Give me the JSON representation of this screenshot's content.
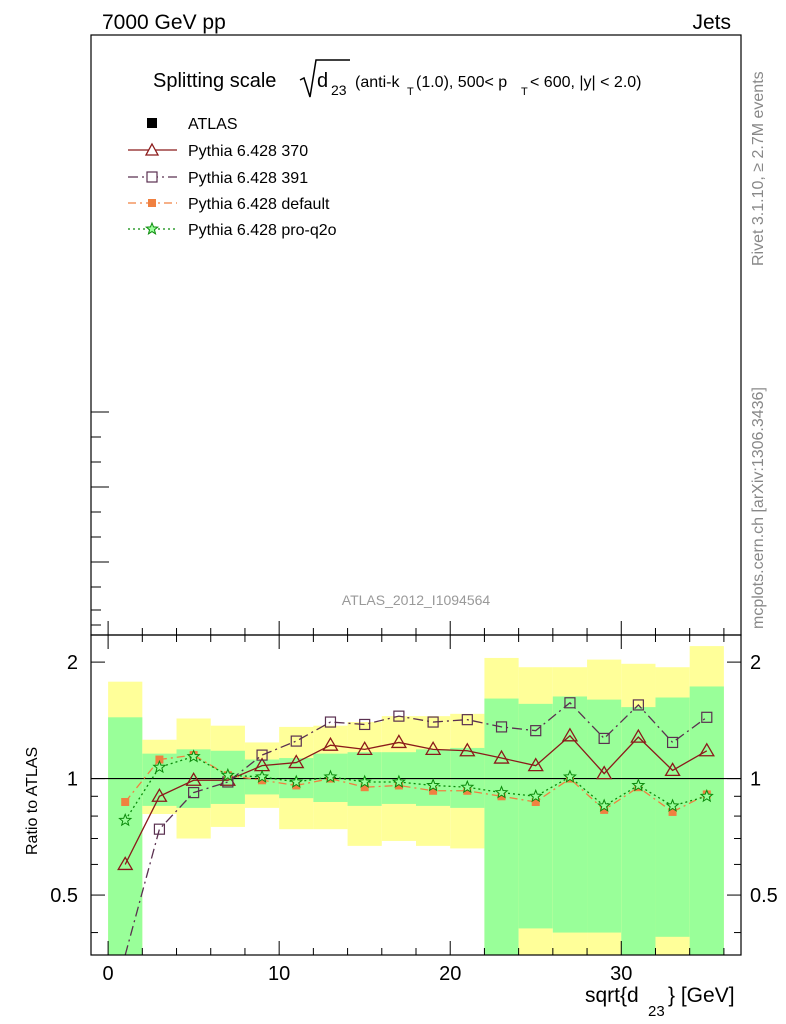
{
  "header": {
    "left": "7000 GeV pp",
    "right": "Jets"
  },
  "title": {
    "main": "Splitting scale",
    "sqrt_arg": "d",
    "sqrt_sub": "23",
    "detail_1": "(anti-k",
    "detail_1_sub": "T",
    "detail_2": "(1.0), 500< p",
    "detail_2_sub": "T",
    "detail_3": "< 600, |y| < 2.0)"
  },
  "side_labels": {
    "rivet": "Rivet 3.1.10, ≥ 2.7M events",
    "mcplots": "mcplots.cern.ch [arXiv:1306.3436]"
  },
  "analysis_id": "ATLAS_2012_I1094564",
  "legend": [
    {
      "key": "atlas",
      "label": "ATLAS"
    },
    {
      "key": "p370",
      "label": "Pythia 6.428 370"
    },
    {
      "key": "p391",
      "label": "Pythia 6.428 391"
    },
    {
      "key": "pdef",
      "label": "Pythia 6.428 default"
    },
    {
      "key": "pq2o",
      "label": "Pythia 6.428 pro-q2o"
    }
  ],
  "colors": {
    "p370": "#8b1a1a",
    "p391": "#5a3050",
    "pdef": "#f08040",
    "pq2o": "#0a8a0a",
    "band_inner": "#99ff99",
    "band_outer": "#ffff99"
  },
  "ratio_ylabel": "Ratio to ATLAS",
  "xlabel": {
    "main": "sqrt{d",
    "sub": "23",
    "tail": "} [GeV]"
  },
  "chart_data": {
    "type": "line",
    "x_range": [
      -1,
      37
    ],
    "y_range": [
      0.35,
      2.35
    ],
    "x_ticks": [
      0,
      10,
      20,
      30
    ],
    "y_ticks": [
      0.5,
      1,
      2
    ],
    "y_tick_labels": [
      "0.5",
      "1",
      "2"
    ],
    "x_tick_labels": [
      "0",
      "10",
      "20",
      "30"
    ],
    "bins": [
      [
        0,
        2
      ],
      [
        2,
        4
      ],
      [
        4,
        6
      ],
      [
        6,
        8
      ],
      [
        8,
        10
      ],
      [
        10,
        12
      ],
      [
        12,
        14
      ],
      [
        14,
        16
      ],
      [
        16,
        18
      ],
      [
        18,
        20
      ],
      [
        20,
        22
      ],
      [
        22,
        24
      ],
      [
        24,
        26
      ],
      [
        26,
        28
      ],
      [
        28,
        30
      ],
      [
        30,
        32
      ],
      [
        32,
        34
      ],
      [
        34,
        36
      ]
    ],
    "band_inner": [
      [
        0.35,
        1.44
      ],
      [
        0.85,
        1.16
      ],
      [
        0.84,
        1.19
      ],
      [
        0.86,
        1.18
      ],
      [
        0.91,
        1.12
      ],
      [
        0.89,
        1.13
      ],
      [
        0.87,
        1.16
      ],
      [
        0.85,
        1.17
      ],
      [
        0.86,
        1.17
      ],
      [
        0.85,
        1.19
      ],
      [
        0.84,
        1.2
      ],
      [
        0.35,
        1.61
      ],
      [
        0.41,
        1.56
      ],
      [
        0.4,
        1.63
      ],
      [
        0.4,
        1.6
      ],
      [
        0.35,
        1.53
      ],
      [
        0.39,
        1.62
      ],
      [
        0.35,
        1.73
      ]
    ],
    "band_outer": [
      [
        0.35,
        1.78
      ],
      [
        0.81,
        1.26
      ],
      [
        0.7,
        1.43
      ],
      [
        0.75,
        1.37
      ],
      [
        0.84,
        1.24
      ],
      [
        0.74,
        1.36
      ],
      [
        0.74,
        1.37
      ],
      [
        0.67,
        1.4
      ],
      [
        0.69,
        1.45
      ],
      [
        0.67,
        1.45
      ],
      [
        0.66,
        1.47
      ],
      [
        0.35,
        2.05
      ],
      [
        0.35,
        1.94
      ],
      [
        0.35,
        1.94
      ],
      [
        0.35,
        2.03
      ],
      [
        0.35,
        1.98
      ],
      [
        0.35,
        1.94
      ],
      [
        0.35,
        2.2
      ]
    ],
    "series": [
      {
        "name": "Pythia 6.428 370",
        "key": "p370",
        "marker": "triangle",
        "dash": "",
        "x": [
          1,
          3,
          5,
          7,
          9,
          11,
          13,
          15,
          17,
          19,
          21,
          23,
          25,
          27,
          29,
          31,
          33,
          35
        ],
        "y": [
          0.6,
          0.9,
          0.99,
          0.99,
          1.08,
          1.1,
          1.22,
          1.19,
          1.24,
          1.19,
          1.18,
          1.13,
          1.08,
          1.29,
          1.03,
          1.28,
          1.05,
          1.18
        ]
      },
      {
        "name": "Pythia 6.428 391",
        "key": "p391",
        "marker": "square-open",
        "dash": "10,4,2,4",
        "x": [
          1,
          3,
          5,
          7,
          9,
          11,
          13,
          15,
          17,
          19,
          21,
          23,
          25,
          27,
          29,
          31,
          33,
          35
        ],
        "y": [
          0.35,
          0.74,
          0.92,
          0.98,
          1.15,
          1.25,
          1.4,
          1.38,
          1.45,
          1.4,
          1.42,
          1.36,
          1.33,
          1.57,
          1.27,
          1.55,
          1.24,
          1.44
        ]
      },
      {
        "name": "Pythia 6.428 default",
        "key": "pdef",
        "marker": "square-filled",
        "dash": "8,4,2,4",
        "x": [
          1,
          3,
          5,
          7,
          9,
          11,
          13,
          15,
          17,
          19,
          21,
          23,
          25,
          27,
          29,
          31,
          33,
          35
        ],
        "y": [
          0.87,
          1.12,
          1.15,
          1.02,
          0.99,
          0.96,
          1.0,
          0.95,
          0.96,
          0.93,
          0.93,
          0.9,
          0.87,
          1.0,
          0.83,
          0.95,
          0.82,
          0.91
        ]
      },
      {
        "name": "Pythia 6.428 pro-q2o",
        "key": "pq2o",
        "marker": "star",
        "dash": "2,3",
        "x": [
          1,
          3,
          5,
          7,
          9,
          11,
          13,
          15,
          17,
          19,
          21,
          23,
          25,
          27,
          29,
          31,
          33,
          35
        ],
        "y": [
          0.78,
          1.07,
          1.14,
          1.02,
          1.01,
          0.98,
          1.01,
          0.98,
          0.98,
          0.96,
          0.95,
          0.92,
          0.9,
          1.01,
          0.85,
          0.96,
          0.85,
          0.9
        ]
      }
    ]
  }
}
